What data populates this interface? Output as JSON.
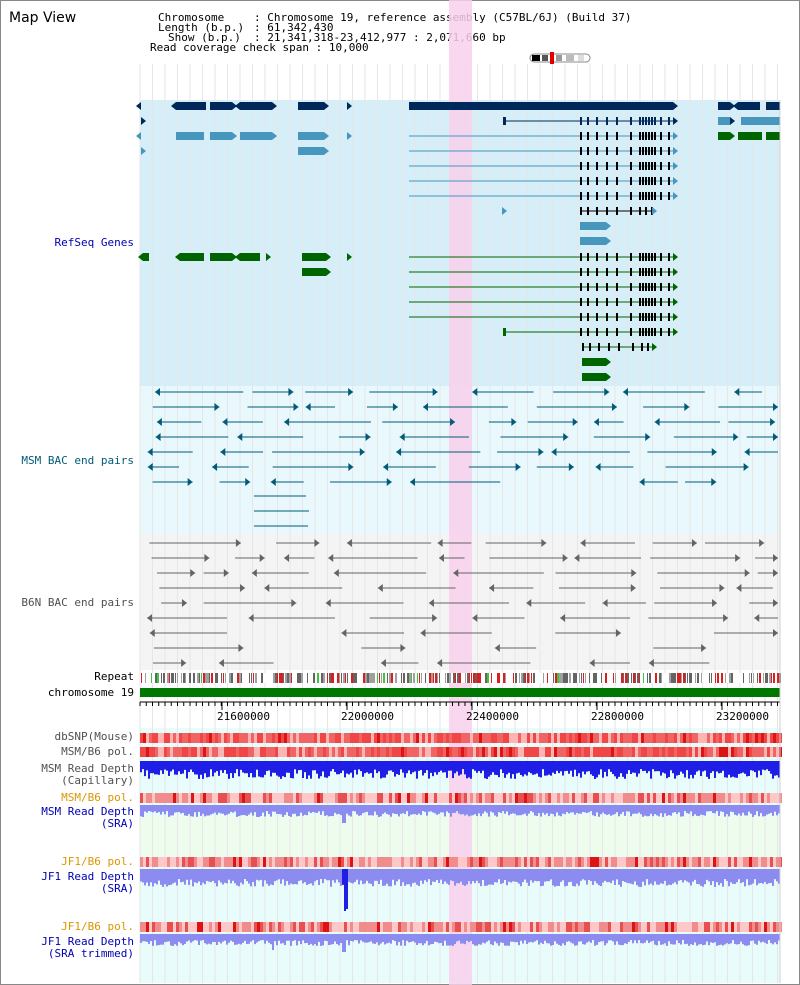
{
  "header": {
    "title": "Map View",
    "chromosome_key": "Chromosome",
    "chromosome_val": "Chromosome 19, reference assembly (C57BL/6J) (Build 37)",
    "length_key": "Length (b.p.)",
    "length_val": "61,342,430",
    "show_key": "Show (b.p.)",
    "show_val": "21,341,318-23,412,977 : 2,071,660 bp",
    "span_key": "Read coverage check span",
    "span_val": "10,000"
  },
  "tracks": {
    "refseq": "RefSeq Genes",
    "msm_bac": "MSM BAC end pairs",
    "b6n_bac": "B6N BAC end pairs",
    "repeat": "Repeat",
    "chromosome": "chromosome 19",
    "dbsnp": "dbSNP(Mouse)",
    "msm_b6_pol": "MSM/B6 pol.",
    "msm_depth_cap_1": "MSM Read Depth",
    "msm_depth_cap_2": "(Capillary)",
    "msm_b6_pol_sra": "MSM/B6 pol.",
    "msm_depth_sra_1": "MSM Read Depth",
    "msm_depth_sra_2": "(SRA)",
    "jf1_b6_pol": "JF1/B6 pol.",
    "jf1_depth_1": "JF1 Read Depth",
    "jf1_depth_2": "(SRA)",
    "jf1_b6_pol_t": "JF1/B6 pol.",
    "jf1_trim_1": "JF1 Read Depth",
    "jf1_trim_2": "(SRA trimmed)"
  },
  "axis": {
    "ticks": [
      "21600000",
      "22000000",
      "22400000",
      "22800000",
      "23200000"
    ]
  },
  "colors": {
    "refseq_bg": "#d6eef8",
    "bac_bg": "#e8f8fc",
    "highlight": "#f8d0ec",
    "gene_navy": "#00285a",
    "gene_light": "#4696be",
    "gene_green": "#006400",
    "chrom_green": "#007800",
    "snp_red": "#f05050",
    "depth_blue": "#1e1ee6",
    "depth_light": "#8c8cf0"
  }
}
